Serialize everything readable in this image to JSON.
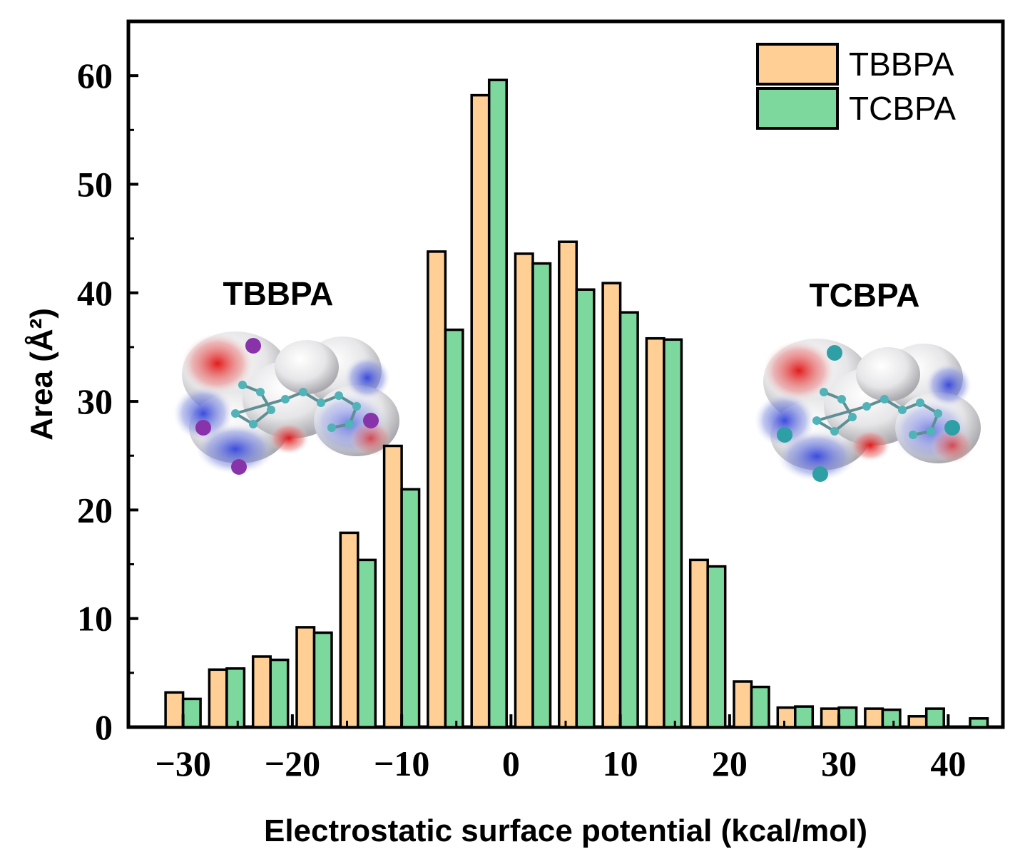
{
  "chart_data": {
    "type": "bar",
    "xlabel": "Electrostatic surface potential (kcal/mol)",
    "ylabel": "Area (Å²)",
    "xlim": [
      -35,
      45
    ],
    "ylim": [
      0,
      65
    ],
    "xticks": [
      -30,
      -20,
      -10,
      0,
      10,
      20,
      30,
      40
    ],
    "xtick_labels": [
      "−30",
      "−20",
      "−10",
      "0",
      "10",
      "20",
      "30",
      "40"
    ],
    "yticks": [
      0,
      10,
      20,
      30,
      40,
      50,
      60
    ],
    "ytick_labels": [
      "0",
      "10",
      "20",
      "30",
      "40",
      "50",
      "60"
    ],
    "legend_position": "top-right",
    "grid": false,
    "x": [
      -30,
      -26,
      -22,
      -18,
      -14,
      -10,
      -6,
      -2,
      2,
      6,
      10,
      14,
      18,
      22,
      26,
      30,
      34,
      38,
      42
    ],
    "series": [
      {
        "name": "TBBPA",
        "color": "#FFCF95",
        "values": [
          3.2,
          5.3,
          6.5,
          9.2,
          17.9,
          25.9,
          43.8,
          58.2,
          43.6,
          44.7,
          40.9,
          35.8,
          15.4,
          4.2,
          1.8,
          1.7,
          1.7,
          1.0,
          null
        ]
      },
      {
        "name": "TCBPA",
        "color": "#7DD89E",
        "values": [
          2.6,
          5.4,
          6.2,
          8.7,
          15.4,
          21.9,
          36.6,
          59.6,
          42.7,
          40.3,
          38.2,
          35.7,
          14.8,
          3.7,
          1.9,
          1.8,
          1.6,
          1.7,
          0.8
        ]
      }
    ],
    "annotations": [
      "TBBPA",
      "TCBPA"
    ]
  },
  "molecules": {
    "left_label": "TBBPA",
    "right_label": "TCBPA"
  },
  "colors": {
    "negative_potential": "#2233CC",
    "positive_potential": "#DD1111",
    "neutral_surface": "#E4E4E6",
    "atom_carbon": "#4FB3B8",
    "atom_bromine": "#8833AA",
    "atom_chlorine": "#2F9FA6"
  }
}
